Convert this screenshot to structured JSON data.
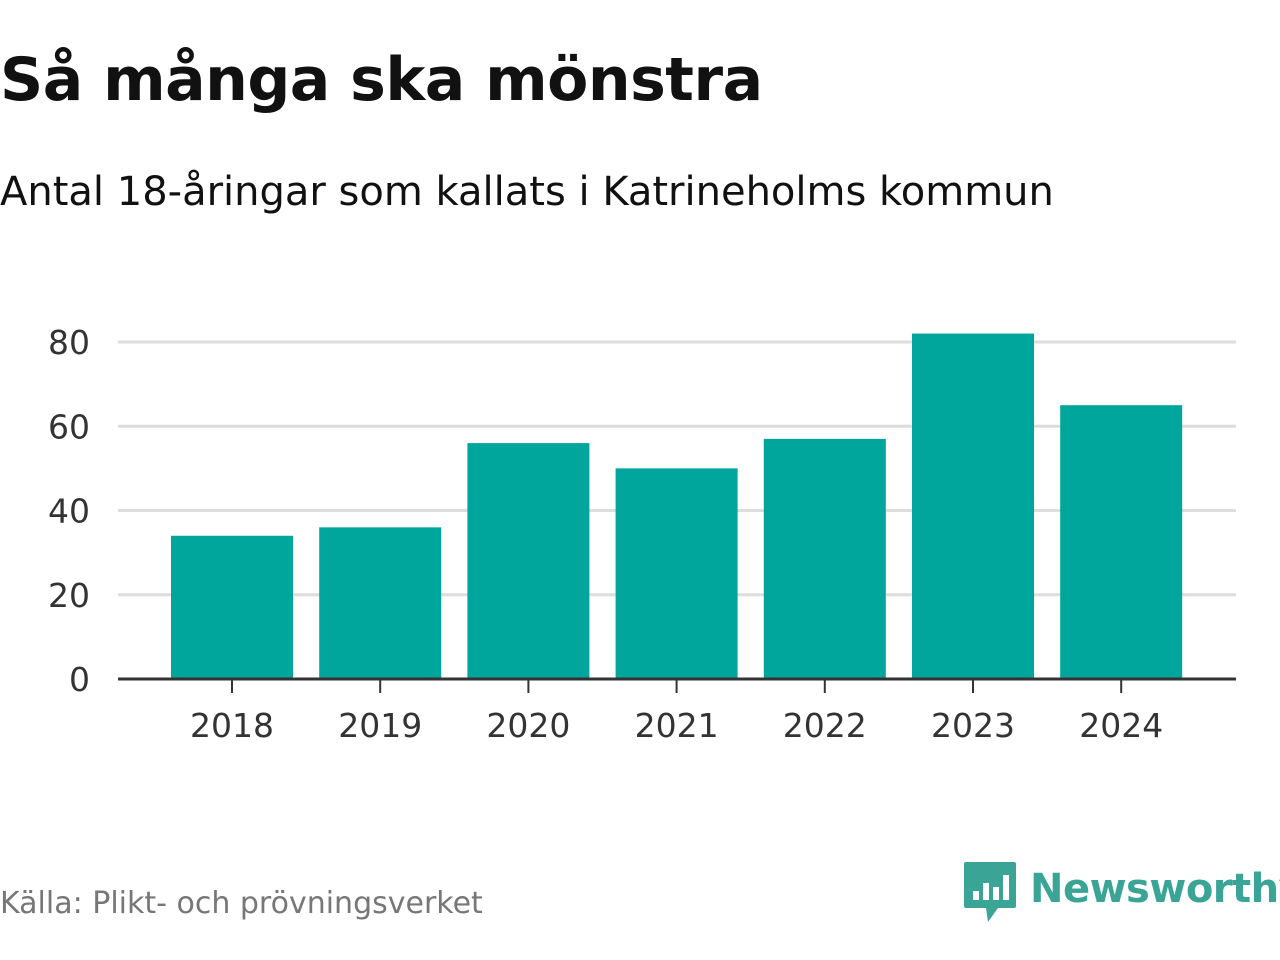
{
  "header": {
    "title": "Så många ska mönstra",
    "subtitle": "Antal 18-åringar som kallats i Katrineholms kommun"
  },
  "footer": {
    "source": "Källa: Plikt- och prövningsverket",
    "brand": "Newsworthy"
  },
  "colors": {
    "bar": "#00a59b",
    "grid": "#dddddd",
    "axis": "#333333",
    "text": "#111111",
    "muted": "#777777",
    "brand": "#3aa596"
  },
  "icons": {
    "brand_logo": "newsworthy-logo-icon"
  },
  "chart_data": {
    "type": "bar",
    "title": "Så många ska mönstra",
    "subtitle": "Antal 18-åringar som kallats i Katrineholms kommun",
    "categories": [
      "2018",
      "2019",
      "2020",
      "2021",
      "2022",
      "2023",
      "2024"
    ],
    "values": [
      34,
      36,
      56,
      50,
      57,
      82,
      65
    ],
    "xlabel": "",
    "ylabel": "",
    "ylim": [
      0,
      80
    ],
    "yticks": [
      0,
      20,
      40,
      60,
      80
    ],
    "grid": true,
    "legend": "none"
  }
}
